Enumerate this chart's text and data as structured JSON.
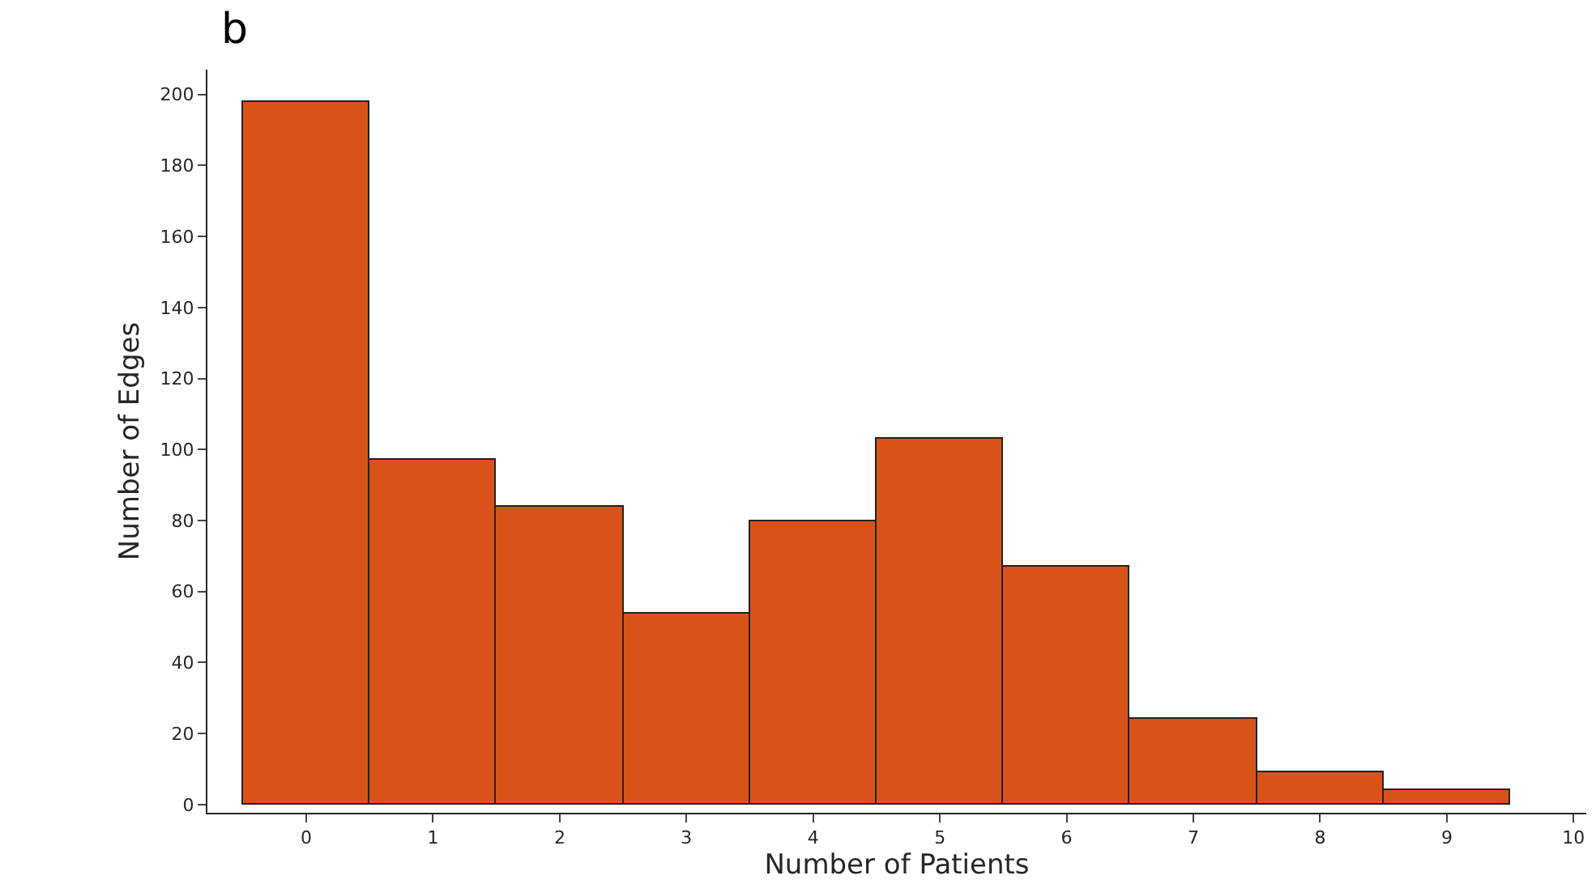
{
  "chart_data": {
    "type": "histogram",
    "title": "b",
    "xlabel": "Number of Patients",
    "ylabel": "Number of Edges",
    "bins": [
      -0.5,
      0.5,
      1.5,
      2.5,
      3.5,
      4.5,
      5.5,
      6.5,
      7.5,
      8.5,
      9.5
    ],
    "values": [
      198,
      97,
      84,
      54,
      80,
      103,
      67,
      24,
      9,
      4
    ],
    "color": "#d95319",
    "xlim": [
      -0.78,
      10.1
    ],
    "xticks": [
      0,
      1,
      2,
      3,
      4,
      5,
      6,
      7,
      8,
      9,
      10
    ],
    "ylim": [
      -2.3,
      207
    ],
    "yticks": [
      0,
      20,
      40,
      60,
      80,
      100,
      120,
      140,
      160,
      180,
      200
    ]
  }
}
